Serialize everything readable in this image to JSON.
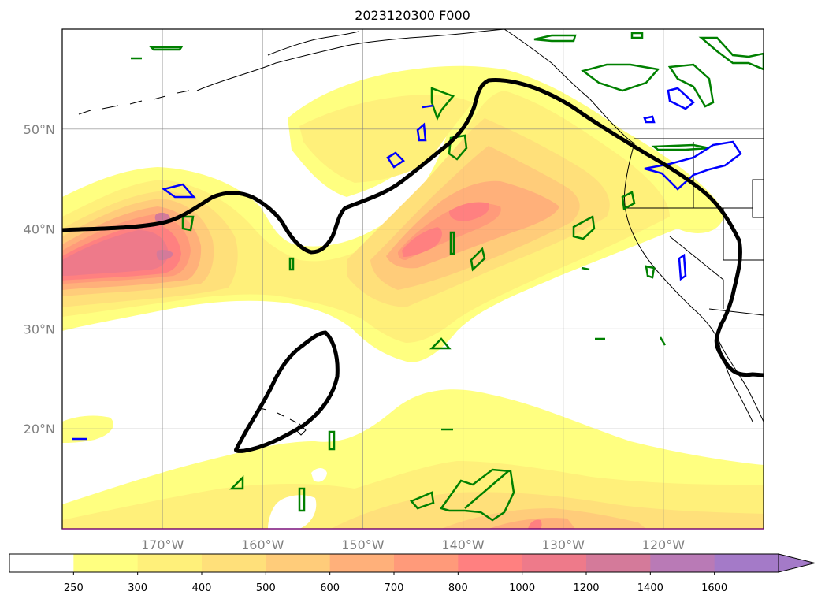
{
  "title": "2023120300 F000",
  "map": {
    "lon_range": [
      -180,
      -110
    ],
    "lat_range": [
      10,
      60
    ],
    "meridians": [
      -170,
      -160,
      -150,
      -140,
      -130,
      -120
    ],
    "parallels": [
      20,
      30,
      40,
      50
    ],
    "lon_labels": [
      "170°W",
      "160°W",
      "150°W",
      "140°W",
      "130°W",
      "120°W"
    ],
    "lat_labels": [
      "20°N",
      "30°N",
      "40°N",
      "50°N"
    ],
    "grid": true
  },
  "colorbar": {
    "levels": [
      "250",
      "300",
      "400",
      "500",
      "600",
      "700",
      "800",
      "1000",
      "1200",
      "1400",
      "1600"
    ],
    "colors": [
      "#ffffff",
      "#ffff80",
      "#fff07a",
      "#ffe07a",
      "#ffcc7a",
      "#ffb07a",
      "#ff9a7a",
      "#ff8080",
      "#ee7a8a",
      "#d47a9a",
      "#b97ab6",
      "#a47ac8"
    ],
    "extend": "max"
  },
  "colors": {
    "jet_contour": "#000000",
    "green_contour": "#008000",
    "blue_contour": "#0000ff",
    "coastline": "#000000",
    "border": "#800080"
  }
}
